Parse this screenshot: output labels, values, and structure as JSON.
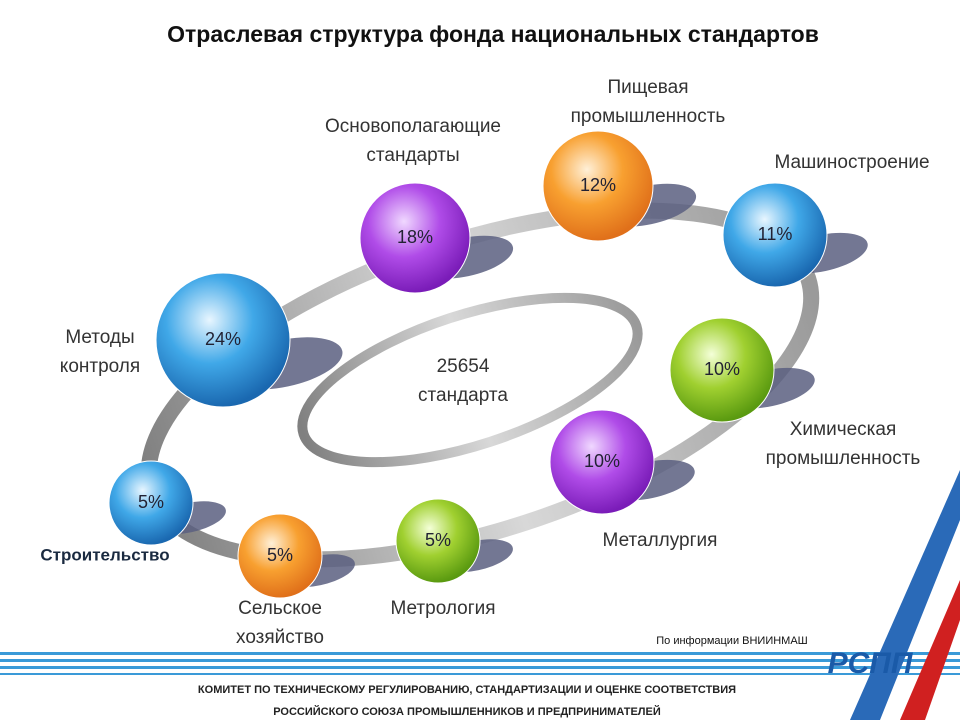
{
  "header": {
    "title": "Отраслевая структура фонда национальных стандартов"
  },
  "center": {
    "lines": [
      "25654",
      "стандарта"
    ]
  },
  "nodes": [
    {
      "label": [
        "Основополагающие",
        "стандарты"
      ],
      "value": "18%"
    },
    {
      "label": [
        "Пищевая",
        "промышленность"
      ],
      "value": "12%"
    },
    {
      "label": [
        "Машиностроение"
      ],
      "value": "11%"
    },
    {
      "label": [
        "Химическая",
        "промышленность"
      ],
      "value": "10%"
    },
    {
      "label": [
        "Металлургия"
      ],
      "value": "10%"
    },
    {
      "label": [
        "Метрология"
      ],
      "value": "5%"
    },
    {
      "label": [
        "Сельское",
        "хозяйство"
      ],
      "value": "5%"
    },
    {
      "label": [
        "Строительство"
      ],
      "value": "5%"
    },
    {
      "label": [
        "Методы",
        "контроля"
      ],
      "value": "24%"
    }
  ],
  "source": "По информации ВНИИНМАШ",
  "footer": {
    "lines": [
      "КОМИТЕТ ПО ТЕХНИЧЕСКОМУ РЕГУЛИРОВАНИЮ, СТАНДАРТИЗАЦИИ И ОЦЕНКЕ СООТВЕТСТВИЯ",
      "РОССИЙСКОГО СОЮЗА ПРОМЫШЛЕННИКОВ И ПРЕДПРИНИМАТЕЛЕЙ"
    ],
    "logo": "РСПП"
  }
}
